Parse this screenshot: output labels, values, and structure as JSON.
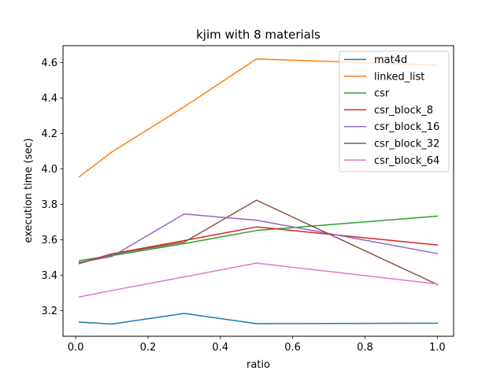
{
  "chart_data": {
    "type": "line",
    "title": "kjim with 8 materials",
    "xlabel": "ratio",
    "ylabel": "execution time (sec)",
    "xlim": [
      -0.035,
      1.045
    ],
    "ylim": [
      3.055,
      4.695
    ],
    "xticks": [
      0.0,
      0.2,
      0.4,
      0.6,
      0.8,
      1.0
    ],
    "xtick_labels": [
      "0.0",
      "0.2",
      "0.4",
      "0.6",
      "0.8",
      "1.0"
    ],
    "yticks": [
      3.2,
      3.4,
      3.6,
      3.8,
      4.0,
      4.2,
      4.4,
      4.6
    ],
    "ytick_labels": [
      "3.2",
      "3.4",
      "3.6",
      "3.8",
      "4.0",
      "4.2",
      "4.4",
      "4.6"
    ],
    "grid": false,
    "legend_position": "top-right",
    "x": [
      0.01,
      0.1,
      0.3,
      0.5,
      1.0
    ],
    "series": [
      {
        "name": "mat4d",
        "color": "#1f77b4",
        "values": [
          3.135,
          3.124,
          3.184,
          3.126,
          3.129
        ]
      },
      {
        "name": "linked_list",
        "color": "#ff7f0e",
        "values": [
          3.955,
          4.095,
          4.35,
          4.62,
          4.585
        ]
      },
      {
        "name": "csr",
        "color": "#2ca02c",
        "values": [
          3.482,
          3.51,
          3.578,
          3.652,
          3.733
        ]
      },
      {
        "name": "csr_block_8",
        "color": "#d62728",
        "values": [
          3.468,
          3.52,
          3.595,
          3.672,
          3.57
        ]
      },
      {
        "name": "csr_block_16",
        "color": "#9467bd",
        "values": [
          3.473,
          3.505,
          3.745,
          3.71,
          3.522
        ]
      },
      {
        "name": "csr_block_32",
        "color": "#8c564b",
        "values": [
          3.465,
          3.517,
          3.586,
          3.823,
          3.347
        ]
      },
      {
        "name": "csr_block_64",
        "color": "#e377c2",
        "values": [
          3.277,
          3.313,
          3.39,
          3.468,
          3.35
        ]
      }
    ]
  }
}
